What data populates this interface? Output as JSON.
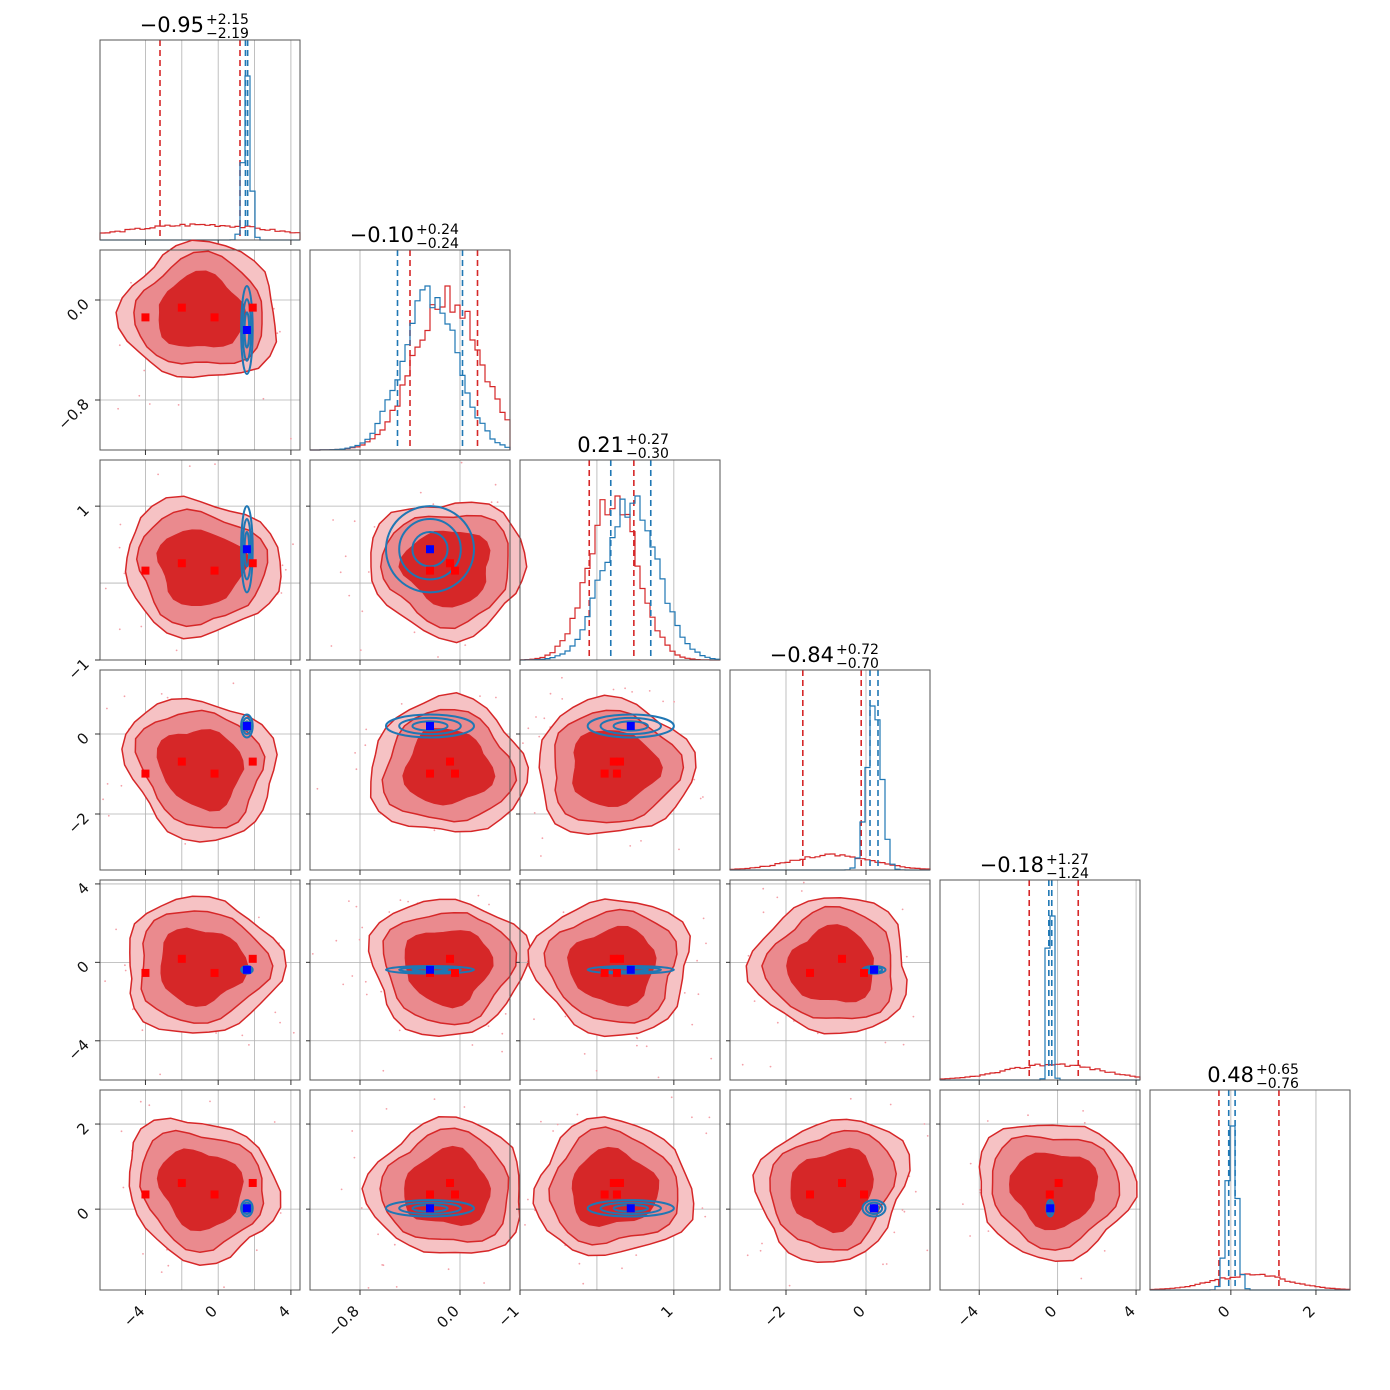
{
  "chart_data": {
    "type": "corner",
    "n_params": 6,
    "series": [
      {
        "name": "",
        "color": "#d62728"
      },
      {
        "name": "",
        "color": "#1f77b4"
      }
    ],
    "marker_colors": {
      "red": "#ff0000",
      "blue": "#0000ff"
    },
    "titles": [
      {
        "median": "−0.95",
        "plus": "+2.15",
        "minus": "−2.19"
      },
      {
        "median": "−0.10",
        "plus": "+0.24",
        "minus": "−0.24"
      },
      {
        "median": "0.21",
        "plus": "+0.27",
        "minus": "−0.30"
      },
      {
        "median": "−0.84",
        "plus": "+0.72",
        "minus": "−0.70"
      },
      {
        "median": "−0.18",
        "plus": "+1.27",
        "minus": "−1.24"
      },
      {
        "median": "0.48",
        "plus": "+0.65",
        "minus": "−0.76"
      }
    ],
    "ranges": [
      [
        -6.5,
        4.5
      ],
      [
        -1.2,
        0.4
      ],
      [
        -1.0,
        1.6
      ],
      [
        -3.4,
        1.6
      ],
      [
        -6.0,
        4.2
      ],
      [
        -1.9,
        2.8
      ]
    ],
    "ticks": [
      {
        "values": [
          -4,
          0,
          4
        ],
        "labels": [
          "−4",
          "0",
          "4"
        ],
        "grid": [
          -4,
          -2,
          0,
          2,
          4
        ]
      },
      {
        "values": [
          -0.8,
          0.0
        ],
        "labels": [
          "−0.8",
          "0.0"
        ],
        "grid": [
          -0.8,
          0.0
        ]
      },
      {
        "values": [
          -1,
          1
        ],
        "labels": [
          "−1",
          "1"
        ],
        "grid": [
          -1,
          0,
          1
        ]
      },
      {
        "values": [
          -2,
          0
        ],
        "labels": [
          "−2",
          "0"
        ],
        "grid": [
          -2,
          0
        ]
      },
      {
        "values": [
          -4,
          0,
          4
        ],
        "labels": [
          "−4",
          "0",
          "4"
        ],
        "grid": [
          -4,
          0,
          4
        ]
      },
      {
        "values": [
          0,
          2
        ],
        "labels": [
          "0",
          "2"
        ],
        "grid": [
          0,
          2
        ]
      }
    ],
    "quantiles": {
      "red": [
        [
          -3.2,
          1.2
        ],
        [
          -0.4,
          0.14
        ],
        [
          -0.1,
          0.48
        ],
        [
          -1.58,
          -0.12
        ],
        [
          -1.45,
          1.05
        ],
        [
          -0.28,
          1.13
        ]
      ],
      "blue": [
        [
          1.5,
          1.62
        ],
        [
          -0.5,
          0.02
        ],
        [
          0.18,
          0.7
        ],
        [
          0.1,
          0.3
        ],
        [
          -0.45,
          -0.3
        ],
        [
          -0.05,
          0.1
        ]
      ]
    },
    "medians": {
      "red": [
        -0.95,
        -0.1,
        0.21,
        -0.84,
        -0.18,
        0.48
      ],
      "blue": [
        1.58,
        -0.24,
        0.44,
        0.2,
        -0.38,
        0.02
      ]
    },
    "red_markers": {
      "x0": [
        -4.0,
        -2.0,
        -0.2,
        1.9
      ],
      "x1": [
        -0.24,
        -0.08,
        -0.04
      ],
      "x2": [
        0.1,
        0.22,
        0.26,
        0.3
      ],
      "x3": [
        -1.4,
        -0.6,
        -0.05
      ],
      "x4": [
        -0.4,
        0.05
      ]
    },
    "blue_marker": [
      1.58,
      -0.24,
      0.44,
      0.2,
      -0.38,
      0.02
    ]
  }
}
